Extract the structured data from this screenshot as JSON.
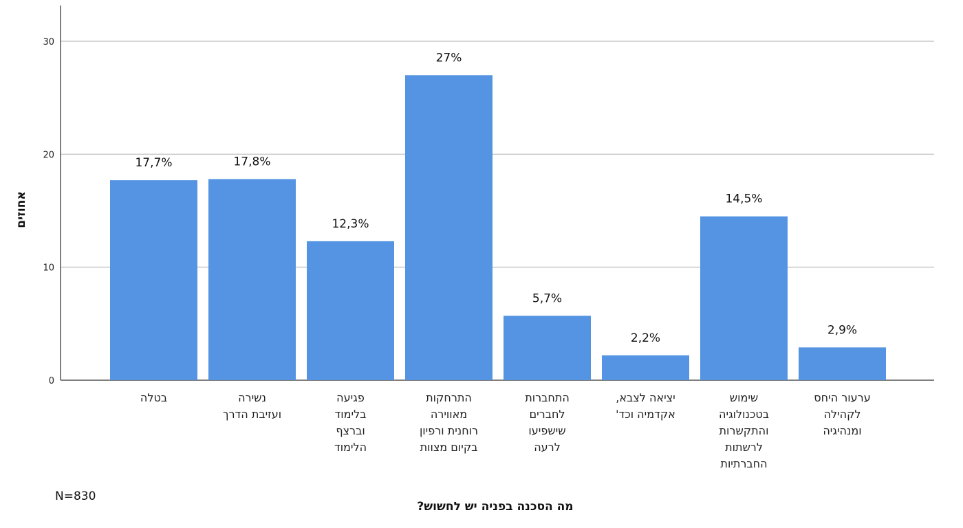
{
  "chart_data": {
    "type": "bar",
    "categories": [
      [
        "בטלה"
      ],
      [
        "נשירה",
        "ועזיבת הדרך"
      ],
      [
        "פגיעה",
        "בלימוד",
        "וברצף",
        "הלימוד"
      ],
      [
        "התרחקות",
        "מאווירה",
        "רוחנית ורפיון",
        "בקיום מצוות"
      ],
      [
        "התחברות",
        "לחברים",
        "שישפיעו",
        "לרעה"
      ],
      [
        "יציאה לצבא,",
        "אקדמיה וכד'"
      ],
      [
        "שימוש",
        "בטכנולוגיה",
        "והתקשרות",
        "לרשתות",
        "החברתיות"
      ],
      [
        "ערעור היחס",
        "לקהילה",
        "ומנהיגיה"
      ]
    ],
    "values": [
      17.7,
      17.8,
      12.3,
      27,
      5.7,
      2.2,
      14.5,
      2.9
    ],
    "data_labels": [
      "17,7%",
      "17,8%",
      "12,3%",
      "27%",
      "5,7%",
      "2,2%",
      "14,5%",
      "2,9%"
    ],
    "ylabel": "אחוזים",
    "xlabel": "מה הסכנה בפניה יש לחשוש?",
    "ylim": [
      0,
      30
    ],
    "yticks": [
      0,
      10,
      20,
      30
    ],
    "grid": true,
    "bar_color": "#5494e2",
    "note": "N=830"
  }
}
